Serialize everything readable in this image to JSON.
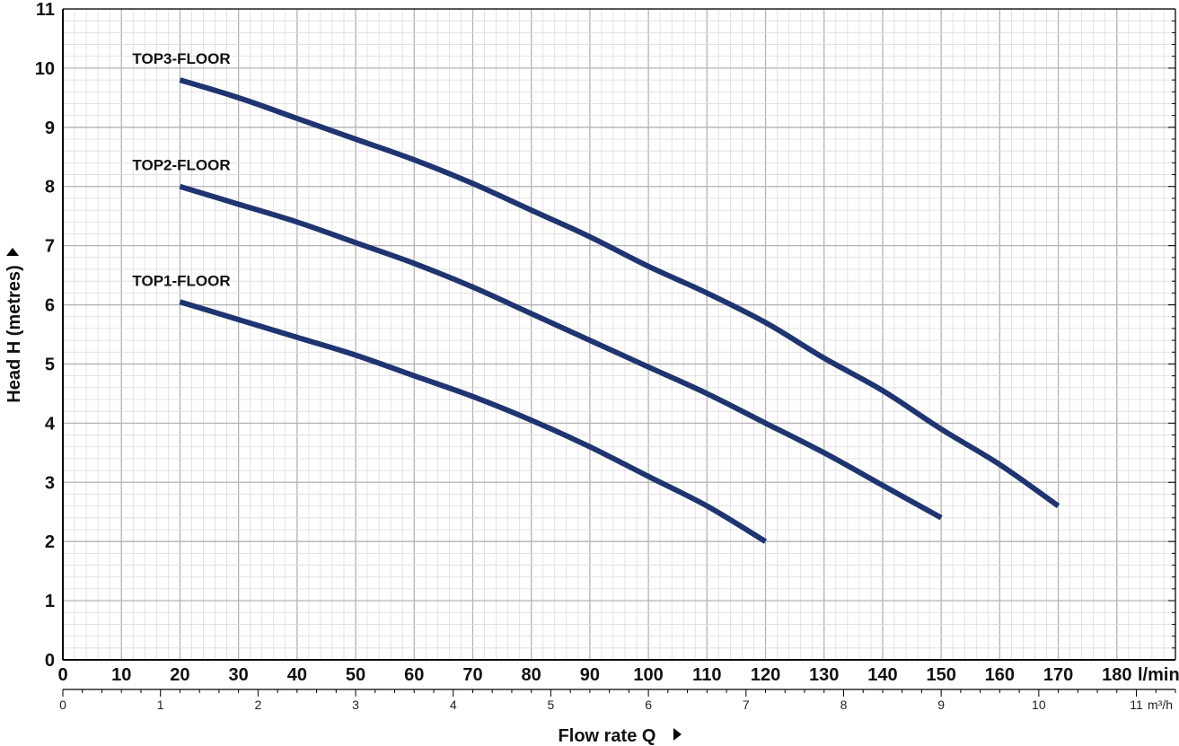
{
  "chart_data": {
    "type": "line",
    "ylabel": "Head H  (metres)",
    "xlabel": "Flow rate  Q",
    "x_unit": "l/min",
    "x2_unit": "m³/h",
    "xlim": [
      0,
      190
    ],
    "ylim": [
      0,
      11
    ],
    "x_ticks": [
      0,
      10,
      20,
      30,
      40,
      50,
      60,
      70,
      80,
      90,
      100,
      110,
      120,
      130,
      140,
      150,
      160,
      170,
      180
    ],
    "x_ticks_labels": [
      "0",
      "10",
      "20",
      "30",
      "40",
      "50",
      "60",
      "70",
      "80",
      "90",
      "100",
      "110",
      "120",
      "130",
      "140",
      "150",
      "160",
      "170",
      "180"
    ],
    "x2_ticks": [
      0,
      1,
      2,
      3,
      4,
      5,
      6,
      7,
      8,
      9,
      10,
      11
    ],
    "x2_ticks_labels": [
      "0",
      "1",
      "2",
      "3",
      "4",
      "5",
      "6",
      "7",
      "8",
      "9",
      "10",
      "11"
    ],
    "y_ticks": [
      0,
      1,
      2,
      3,
      4,
      5,
      6,
      7,
      8,
      9,
      10,
      11
    ],
    "y_ticks_labels": [
      "0",
      "1",
      "2",
      "3",
      "4",
      "5",
      "6",
      "7",
      "8",
      "9",
      "10",
      "11"
    ],
    "grid": true,
    "line_color": "#1f3470",
    "series": [
      {
        "name": "TOP3-FLOOR",
        "x": [
          20,
          30,
          40,
          50,
          60,
          70,
          80,
          90,
          100,
          110,
          120,
          130,
          140,
          150,
          160,
          170
        ],
        "y": [
          9.8,
          9.5,
          9.15,
          8.8,
          8.45,
          8.05,
          7.6,
          7.15,
          6.65,
          6.2,
          5.7,
          5.1,
          4.55,
          3.9,
          3.3,
          2.6
        ]
      },
      {
        "name": "TOP2-FLOOR",
        "x": [
          20,
          30,
          40,
          50,
          60,
          70,
          80,
          90,
          100,
          110,
          120,
          130,
          140,
          150
        ],
        "y": [
          8.0,
          7.7,
          7.4,
          7.05,
          6.7,
          6.3,
          5.85,
          5.4,
          4.95,
          4.5,
          4.0,
          3.5,
          2.95,
          2.4
        ]
      },
      {
        "name": "TOP1-FLOOR",
        "x": [
          20,
          30,
          40,
          50,
          60,
          70,
          80,
          90,
          100,
          110,
          120
        ],
        "y": [
          6.05,
          5.75,
          5.45,
          5.15,
          4.8,
          4.45,
          4.05,
          3.6,
          3.1,
          2.6,
          2.0
        ]
      }
    ]
  }
}
